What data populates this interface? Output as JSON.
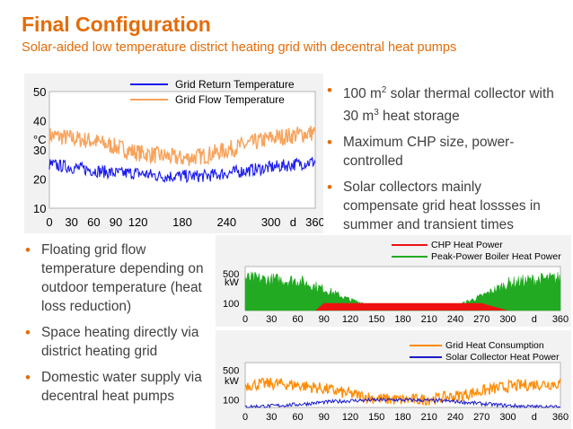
{
  "slide": {
    "title": "Final Configuration",
    "subtitle": "Solar-aided low temperature district heating grid with decentral heat pumps"
  },
  "bullets_right": [
    {
      "pre": "100 m",
      "sup": "2",
      "post": " solar thermal collector with 30 m",
      "sup2": "3",
      "post2": " heat storage"
    },
    {
      "pre": "Maximum CHP size, power-controlled"
    },
    {
      "pre": "Solar collectors mainly compensate grid heat lossses in summer and transient times"
    }
  ],
  "bullets_left": [
    "Floating grid flow temperature depending on outdoor temperature (heat loss reduction)",
    "Space heating directly via district heating grid",
    "Domestic water supply via decentral heat pumps"
  ],
  "colors": {
    "accent": "#e46c0a",
    "return_temp": "#1a1aee",
    "flow_temp": "#f7a35c",
    "chp": "#ee1111",
    "boiler": "#22aa22",
    "consumption": "#ff8a00",
    "solar": "#1a1acc"
  },
  "chart_data": [
    {
      "type": "line",
      "title": "",
      "ylabel": "°C",
      "xlabel": "d",
      "x_ticks": [
        "0",
        "30",
        "60",
        "90",
        "120",
        "180",
        "240",
        "300",
        "d",
        "360"
      ],
      "y_ticks": [
        "10",
        "20",
        "30",
        "40",
        "50"
      ],
      "xlim": [
        0,
        360
      ],
      "ylim": [
        10,
        50
      ],
      "legend_position": "top",
      "series": [
        {
          "name": "Grid Return Temperature",
          "x": [
            0,
            30,
            60,
            90,
            120,
            150,
            180,
            210,
            240,
            270,
            300,
            330,
            360
          ],
          "values": [
            25,
            24,
            23,
            22,
            22,
            21,
            21,
            21,
            22,
            23,
            24,
            25,
            26
          ]
        },
        {
          "name": "Grid Flow Temperature",
          "x": [
            0,
            30,
            60,
            90,
            120,
            150,
            180,
            210,
            240,
            270,
            300,
            330,
            360
          ],
          "values": [
            35,
            34,
            33,
            31,
            29,
            28,
            27,
            28,
            30,
            32,
            34,
            35,
            36
          ]
        }
      ]
    },
    {
      "type": "area",
      "title": "",
      "ylabel": "kW",
      "xlabel": "d",
      "x_ticks": [
        "0",
        "30",
        "60",
        "90",
        "120",
        "150",
        "180",
        "210",
        "240",
        "270",
        "300",
        "d",
        "360"
      ],
      "y_ticks": [
        "100",
        "500"
      ],
      "xlim": [
        0,
        360
      ],
      "legend_position": "top-right",
      "series": [
        {
          "name": "CHP Heat Power",
          "x": [
            0,
            80,
            90,
            120,
            150,
            180,
            210,
            240,
            270,
            300,
            360
          ],
          "values": [
            0,
            0,
            100,
            100,
            100,
            100,
            100,
            100,
            100,
            0,
            0
          ]
        },
        {
          "name": "Peak-Power Boiler Heat Power",
          "x": [
            0,
            30,
            60,
            90,
            120,
            150,
            240,
            270,
            300,
            330,
            360
          ],
          "values": [
            450,
            430,
            420,
            300,
            150,
            60,
            60,
            200,
            380,
            430,
            450
          ]
        }
      ]
    },
    {
      "type": "line",
      "title": "",
      "ylabel": "kW",
      "xlabel": "d",
      "x_ticks": [
        "0",
        "30",
        "60",
        "90",
        "120",
        "150",
        "180",
        "210",
        "240",
        "270",
        "300",
        "d",
        "360"
      ],
      "y_ticks": [
        "100",
        "500"
      ],
      "xlim": [
        0,
        360
      ],
      "legend_position": "top-right",
      "series": [
        {
          "name": "Grid Heat Consumption",
          "x": [
            0,
            30,
            60,
            90,
            120,
            150,
            180,
            210,
            240,
            270,
            300,
            330,
            360
          ],
          "values": [
            300,
            320,
            300,
            250,
            180,
            120,
            100,
            110,
            150,
            220,
            280,
            310,
            320
          ]
        },
        {
          "name": "Solar Collector Heat Power",
          "x": [
            0,
            30,
            60,
            90,
            120,
            150,
            180,
            210,
            240,
            270,
            300,
            330,
            360
          ],
          "values": [
            10,
            20,
            40,
            70,
            90,
            100,
            100,
            95,
            80,
            50,
            25,
            10,
            5
          ]
        }
      ]
    }
  ]
}
